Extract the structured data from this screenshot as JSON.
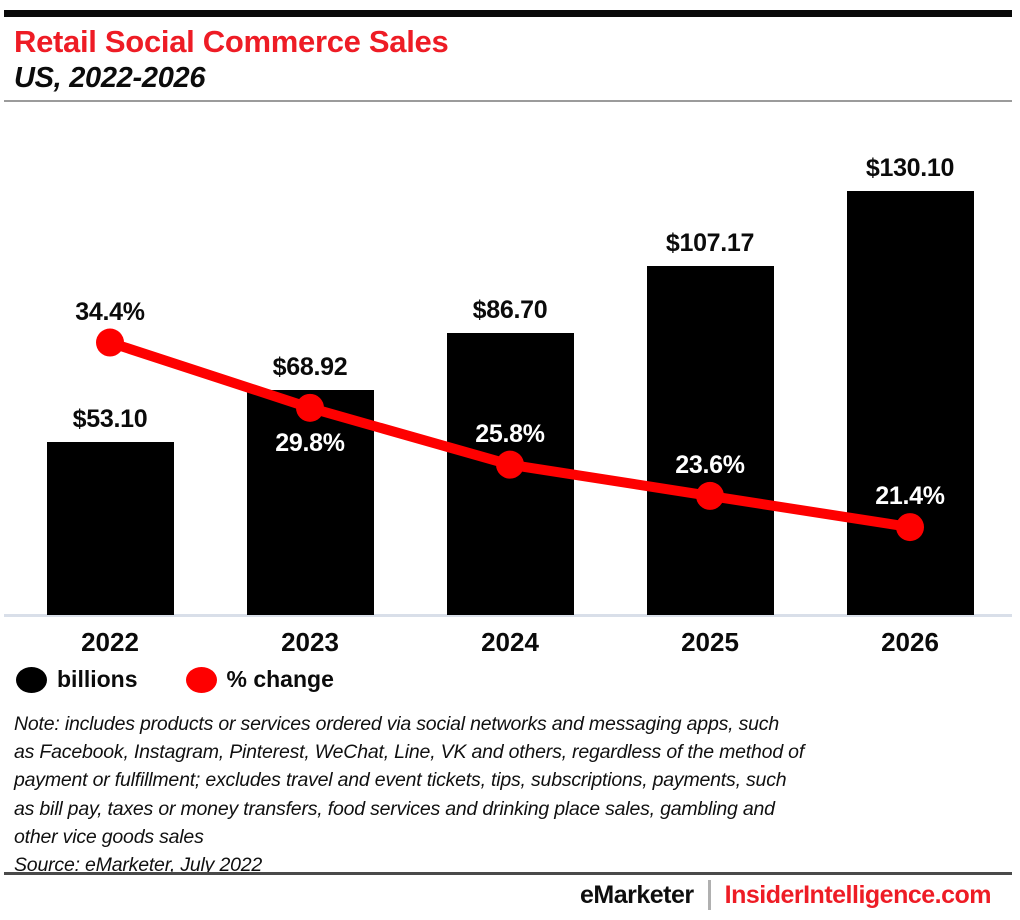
{
  "header": {
    "title": "Retail Social Commerce Sales",
    "subtitle": "US, 2022-2026"
  },
  "chart_data": {
    "type": "bar",
    "title": "Retail Social Commerce Sales",
    "subtitle": "US, 2022-2026",
    "categories": [
      "2022",
      "2023",
      "2024",
      "2025",
      "2026"
    ],
    "series": [
      {
        "name": "billions",
        "type": "bar",
        "values": [
          53.1,
          68.92,
          86.7,
          107.17,
          130.1
        ],
        "labels": [
          "$53.10",
          "$68.92",
          "$86.70",
          "$107.17",
          "$130.10"
        ],
        "color": "#000000"
      },
      {
        "name": "% change",
        "type": "line",
        "values": [
          34.4,
          29.8,
          25.8,
          23.6,
          21.4
        ],
        "labels": [
          "34.4%",
          "29.8%",
          "25.8%",
          "23.6%",
          "21.4%"
        ],
        "color": "#fe0000"
      }
    ],
    "grid": false,
    "legend_position": "bottom-left",
    "axis_line_color": "#d9dfe9"
  },
  "legend": {
    "items": [
      {
        "label": "billions",
        "color": "#000000"
      },
      {
        "label": "% change",
        "color": "#fe0000"
      }
    ]
  },
  "note": {
    "lines": [
      "Note: includes products or services ordered via social networks and messaging apps, such",
      "as Facebook, Instagram, Pinterest, WeChat, Line, VK and others, regardless of the method of",
      "payment or fulfillment; excludes travel and event tickets, tips, subscriptions, payments, such",
      "as bill pay, taxes or money transfers, food services and drinking place sales, gambling and",
      "other vice goods sales"
    ]
  },
  "source": "Source: eMarketer, July 2022",
  "footer": {
    "brand": "eMarketer",
    "separator": "|",
    "site": "InsiderIntelligence.com"
  },
  "colors": {
    "accent_red": "#ee1c25",
    "line_red": "#fe0000",
    "bar_black": "#000000"
  }
}
